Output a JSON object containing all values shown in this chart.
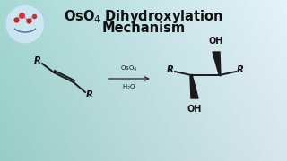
{
  "bg_colors": [
    "#aaddd8",
    "#9ecfcf",
    "#8ec8cc",
    "#a0d5d8",
    "#b8e2e5",
    "#c8eaec"
  ],
  "title_text1": "OsO",
  "title_text2": " Dihydroxylation",
  "title_text3": "Mechanism",
  "text_color": "#111111",
  "bond_color": "#1a1a1a",
  "logo_fill": "#cde8f2",
  "logo_edge": "#a8cce0",
  "reagent1": "OsO",
  "reagent2": "H",
  "arrow_color": "#333333",
  "font_size_title": 10.5,
  "font_size_r": 7.5,
  "font_size_oh": 7.0,
  "font_size_reagent": 5.0
}
